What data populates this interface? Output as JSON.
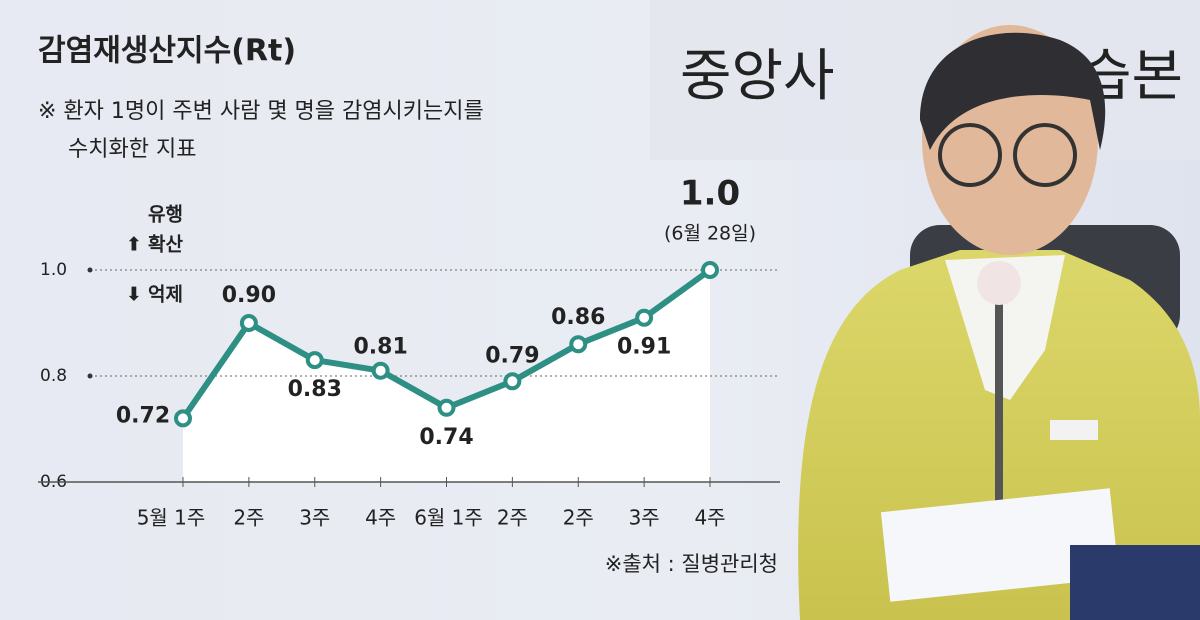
{
  "chart_data": {
    "type": "line",
    "title": "감염재생산지수(Rt)",
    "subtitle": [
      "※ 환자 1명이 주변 사람 몇 명을 감염시키는지를",
      "수치화한 지표"
    ],
    "legend_texts": {
      "up_top": "유행",
      "up": "확산",
      "down": "억제"
    },
    "annotation": "(6월 28일)",
    "source": "※출처 : 질병관리청",
    "photo_texts": [
      "중앙사",
      "습본"
    ],
    "categories": [
      "5월 1주",
      "2주",
      "3주",
      "4주",
      "6월 1주",
      "2주",
      "2주",
      "3주",
      "4주"
    ],
    "values": [
      0.72,
      0.9,
      0.83,
      0.81,
      0.74,
      0.79,
      0.86,
      0.91,
      1.0
    ],
    "value_labels": [
      "0.72",
      "0.90",
      "0.83",
      "0.81",
      "0.74",
      "0.79",
      "0.86",
      "0.91",
      "1.0"
    ],
    "color": "#2e8f84",
    "ylim": [
      0.6,
      1.05
    ],
    "yticks": [
      0.6,
      0.8,
      {
        "value": 1.0,
        "label": "1.0"
      }
    ],
    "grid": true
  }
}
